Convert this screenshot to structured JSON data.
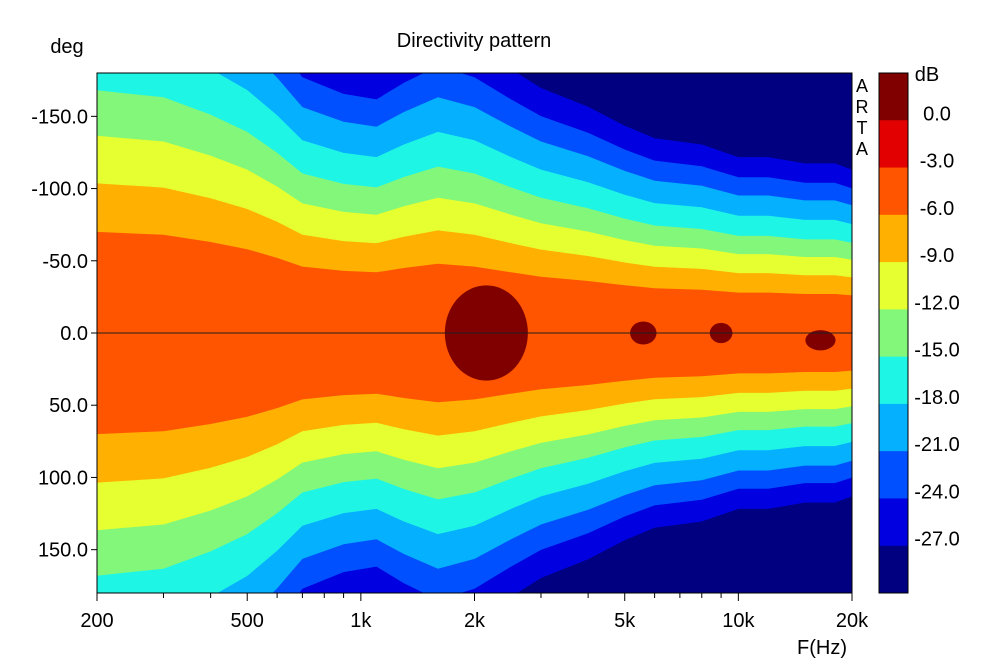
{
  "chart_data": {
    "type": "heatmap",
    "title": "Directivity pattern",
    "xlabel": "F(Hz)",
    "ylabel": "deg",
    "x_scale": "log",
    "xlim": [
      200,
      20000
    ],
    "ylim": [
      -180,
      180
    ],
    "x_ticks": [
      {
        "value": 200,
        "label": "200"
      },
      {
        "value": 500,
        "label": "500"
      },
      {
        "value": 1000,
        "label": "1k"
      },
      {
        "value": 2000,
        "label": "2k"
      },
      {
        "value": 5000,
        "label": "5k"
      },
      {
        "value": 10000,
        "label": "10k"
      },
      {
        "value": 20000,
        "label": "20k"
      }
    ],
    "y_ticks": [
      {
        "value": -150,
        "label": "-150.0"
      },
      {
        "value": -100,
        "label": "-100.0"
      },
      {
        "value": -50,
        "label": "-50.0"
      },
      {
        "value": 0,
        "label": "0.0"
      },
      {
        "value": 50,
        "label": "50.0"
      },
      {
        "value": 100,
        "label": "100.0"
      },
      {
        "value": 150,
        "label": "150.0"
      }
    ],
    "colorbar": {
      "unit": "dB",
      "levels": [
        {
          "label": "0.0",
          "value": 0
        },
        {
          "label": "-3.0",
          "value": -3
        },
        {
          "label": "-6.0",
          "value": -6
        },
        {
          "label": "-9.0",
          "value": -9
        },
        {
          "label": "-12.0",
          "value": -12
        },
        {
          "label": "-15.0",
          "value": -15
        },
        {
          "label": "-18.0",
          "value": -18
        },
        {
          "label": "-21.0",
          "value": -21
        },
        {
          "label": "-24.0",
          "value": -24
        },
        {
          "label": "-27.0",
          "value": -27
        }
      ],
      "colors": [
        "#800000",
        "#e30000",
        "#ff5500",
        "#ffb000",
        "#e6ff30",
        "#82f77a",
        "#1ff5e5",
        "#05b0ff",
        "#0050ff",
        "#0000e0",
        "#000080"
      ]
    },
    "half_width_deg_at_-3dB": {
      "freqs": [
        200,
        300,
        400,
        500,
        600,
        700,
        900,
        1100,
        1300,
        1600,
        2000,
        2500,
        3000,
        4000,
        5000,
        6000,
        8000,
        10000,
        12000,
        15000,
        18000,
        20000
      ],
      "values": [
        70,
        68,
        63,
        58,
        52,
        46,
        43,
        42,
        45,
        48,
        46,
        42,
        39,
        36,
        33,
        31,
        30,
        28,
        28,
        27,
        27,
        26
      ]
    },
    "side_label": "ARTA"
  }
}
